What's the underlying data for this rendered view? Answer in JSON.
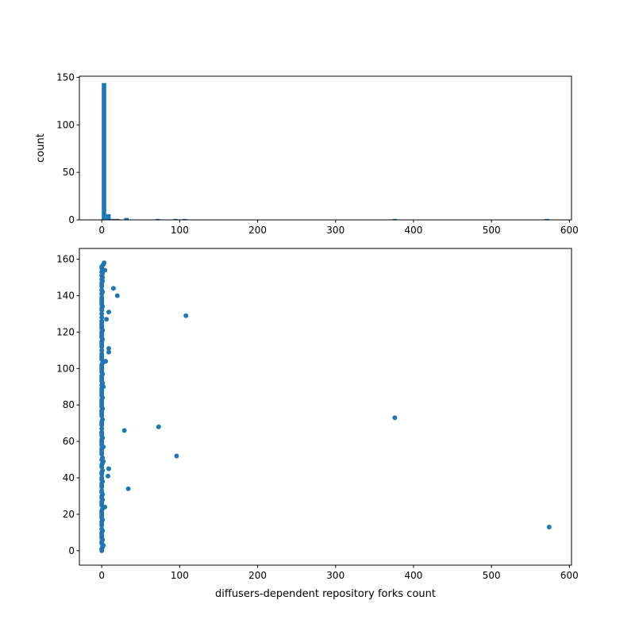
{
  "chart_data": [
    {
      "type": "bar",
      "subtype": "histogram",
      "bins": 100,
      "ylabel": "count",
      "xlabel": "",
      "xticks": [
        0,
        100,
        200,
        300,
        400,
        500,
        600
      ],
      "yticks": [
        0,
        50,
        100,
        150
      ],
      "xlim": [
        -28.7,
        602.7
      ],
      "color": "#1f77b4",
      "grid": false
    },
    {
      "type": "scatter",
      "xlabel": "diffusers-dependent repository forks count",
      "ylabel": "",
      "xticks": [
        0,
        100,
        200,
        300,
        400,
        500,
        600
      ],
      "yticks": [
        0,
        20,
        40,
        60,
        80,
        100,
        120,
        140,
        160
      ],
      "xlim": [
        -28.7,
        602.7
      ],
      "ylim": [
        -7.9,
        165.9
      ],
      "color": "#1f77b4",
      "grid": false,
      "x": [
        0,
        0,
        1,
        2,
        0,
        0,
        1,
        0,
        0,
        0,
        0,
        1,
        0,
        574,
        0,
        0,
        0,
        1,
        0,
        0,
        0,
        0,
        0,
        1,
        4,
        0,
        0,
        0,
        1,
        0,
        0,
        1,
        0,
        0,
        34,
        0,
        0,
        0,
        1,
        0,
        0,
        8,
        0,
        0,
        1,
        9,
        0,
        0,
        1,
        2,
        0,
        1,
        96,
        0,
        0,
        0,
        0,
        2,
        0,
        0,
        0,
        0,
        1,
        0,
        0,
        0,
        29,
        0,
        73,
        0,
        0,
        0,
        1,
        376,
        0,
        0,
        0,
        0,
        1,
        0,
        0,
        0,
        0,
        0,
        1,
        0,
        0,
        0,
        0,
        0,
        2,
        0,
        1,
        0,
        0,
        0,
        0,
        1,
        0,
        0,
        0,
        0,
        0,
        1,
        5,
        0,
        0,
        0,
        0,
        9,
        0,
        9,
        0,
        0,
        0,
        0,
        1,
        0,
        0,
        0,
        0,
        1,
        0,
        0,
        0,
        0,
        0,
        6,
        0,
        108,
        0,
        9,
        0,
        0,
        1,
        0,
        0,
        0,
        0,
        0,
        20,
        0,
        1,
        0,
        15,
        0,
        0,
        0,
        1,
        0,
        1,
        0,
        1,
        0,
        4,
        0,
        0,
        2,
        3
      ],
      "y": "index"
    }
  ]
}
